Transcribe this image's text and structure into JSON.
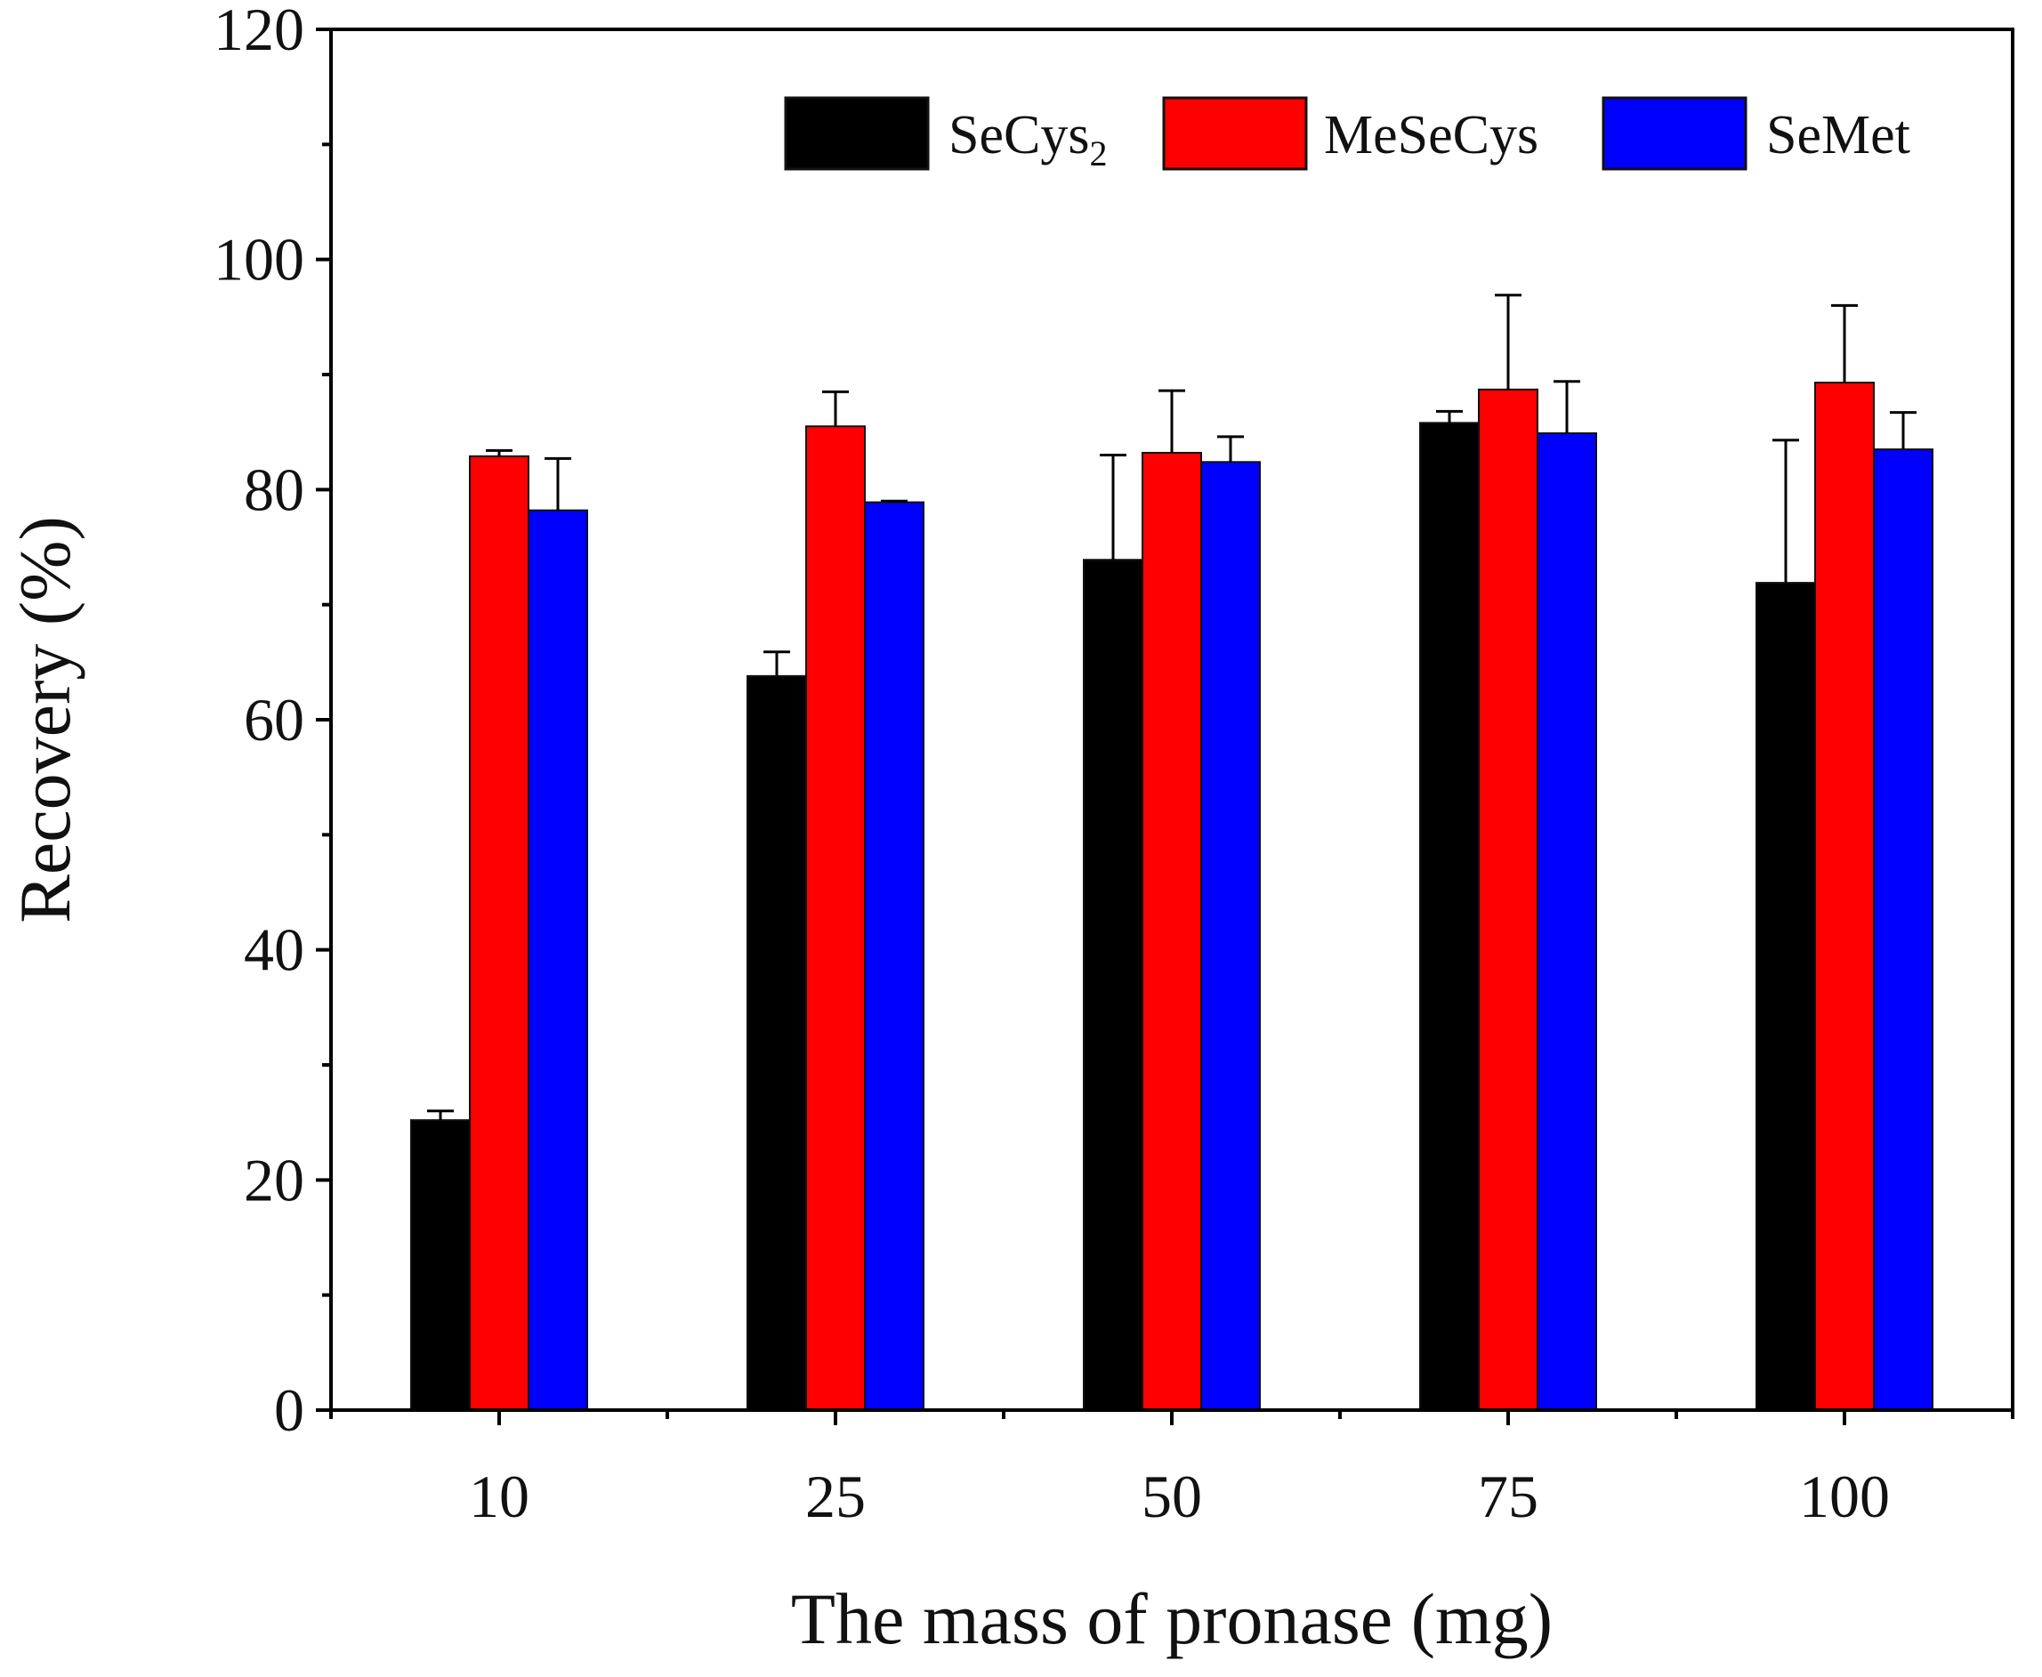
{
  "chart_data": {
    "type": "bar",
    "title": "",
    "xlabel": "The mass of pronase (mg)",
    "ylabel": "Recovery (%)",
    "categories": [
      "10",
      "25",
      "50",
      "75",
      "100"
    ],
    "ylim": [
      0,
      120
    ],
    "yticks": [
      "0",
      "20",
      "40",
      "60",
      "80",
      "100",
      "120"
    ],
    "grid": false,
    "legend_position": "top-right",
    "series": [
      {
        "name": "SeCys",
        "name_subscript": "2",
        "color": "#000000",
        "values": [
          25.2,
          63.8,
          73.9,
          85.8,
          71.9
        ],
        "errors": [
          0.8,
          2.1,
          9.1,
          1.0,
          12.4
        ]
      },
      {
        "name": "MeSeCys",
        "name_subscript": "",
        "color": "#ff0000",
        "values": [
          82.9,
          85.5,
          83.2,
          88.7,
          89.3
        ],
        "errors": [
          0.5,
          3.0,
          5.4,
          8.2,
          6.7
        ]
      },
      {
        "name": "SeMet",
        "name_subscript": "",
        "color": "#0000ff",
        "values": [
          78.2,
          78.9,
          82.4,
          84.9,
          83.5
        ],
        "errors": [
          4.5,
          0.1,
          2.2,
          4.5,
          3.2
        ]
      }
    ]
  }
}
